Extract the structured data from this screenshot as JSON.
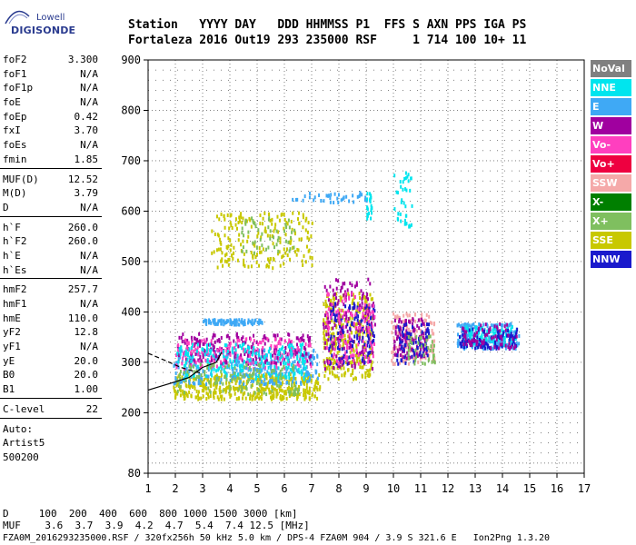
{
  "logo": {
    "line1": "Lowell",
    "line2": "DIGISONDE"
  },
  "header": {
    "line1": "Station   YYYY DAY   DDD HHMMSS P1  FFS S AXN PPS IGA PS",
    "line2": "Fortaleza 2016 Out19 293 235000 RSF     1 714 100 10+ 11"
  },
  "params": {
    "group1": [
      {
        "name": "foF2",
        "value": "3.300"
      },
      {
        "name": "foF1",
        "value": "N/A"
      },
      {
        "name": "foF1p",
        "value": "N/A"
      },
      {
        "name": "foE",
        "value": "N/A"
      },
      {
        "name": "foEp",
        "value": "0.42"
      },
      {
        "name": "fxI",
        "value": "3.70"
      },
      {
        "name": "foEs",
        "value": "N/A"
      },
      {
        "name": "fmin",
        "value": "1.85"
      }
    ],
    "group2": [
      {
        "name": "MUF(D)",
        "value": "12.52"
      },
      {
        "name": "M(D)",
        "value": "3.79"
      },
      {
        "name": "D",
        "value": "N/A"
      }
    ],
    "group3": [
      {
        "name": "h`F",
        "value": "260.0"
      },
      {
        "name": "h`F2",
        "value": "260.0"
      },
      {
        "name": "h`E",
        "value": "N/A"
      },
      {
        "name": "h`Es",
        "value": "N/A"
      }
    ],
    "group4": [
      {
        "name": "hmF2",
        "value": "257.7"
      },
      {
        "name": "hmF1",
        "value": "N/A"
      },
      {
        "name": "hmE",
        "value": "110.0"
      },
      {
        "name": "yF2",
        "value": "12.8"
      },
      {
        "name": "yF1",
        "value": "N/A"
      },
      {
        "name": "yE",
        "value": "20.0"
      },
      {
        "name": "B0",
        "value": "20.0"
      },
      {
        "name": "B1",
        "value": "1.00"
      }
    ],
    "group5": [
      {
        "name": "C-level",
        "value": "22"
      }
    ]
  },
  "auto": [
    "Auto:",
    "Artist5",
    "500200"
  ],
  "legend": [
    {
      "label": "NoVal",
      "color": "#808080"
    },
    {
      "label": "NNE",
      "color": "#00e5ee"
    },
    {
      "label": "E",
      "color": "#3fa9f5"
    },
    {
      "label": "W",
      "color": "#a0009f"
    },
    {
      "label": "Vo-",
      "color": "#ff3fbf"
    },
    {
      "label": "Vo+",
      "color": "#ee0040"
    },
    {
      "label": "SSW",
      "color": "#f5a9a9"
    },
    {
      "label": "X-",
      "color": "#007f00"
    },
    {
      "label": "X+",
      "color": "#7fbf5f"
    },
    {
      "label": "SSE",
      "color": "#c8c800"
    },
    {
      "label": "NNW",
      "color": "#1a1acc"
    }
  ],
  "footer": {
    "line1": "D     100  200  400  600  800 1000 1500 3000 [km]",
    "line2": "MUF    3.6  3.7  3.9  4.2  4.7  5.4  7.4 12.5 [MHz]",
    "line3": "FZA0M_2016293235000.RSF / 320fx256h 50 kHz 5.0 km / DPS-4 FZA0M 904 / 3.9 S 321.6 E   Ion2Png 1.3.20"
  },
  "chart_data": {
    "type": "scatter",
    "xlim": [
      1,
      17
    ],
    "ylim": [
      80,
      900
    ],
    "xticks": [
      1,
      2,
      3,
      4,
      5,
      6,
      7,
      8,
      9,
      10,
      11,
      12,
      13,
      14,
      15,
      16,
      17
    ],
    "yticks": [
      80,
      200,
      300,
      400,
      500,
      600,
      700,
      800,
      900
    ],
    "grid": true,
    "legend_placement": "right",
    "clusters": [
      {
        "series": "SSE",
        "x": [
          1.9,
          7.3
        ],
        "y": [
          230,
          280
        ],
        "count": 420
      },
      {
        "series": "E",
        "x": [
          1.9,
          7.2
        ],
        "y": [
          260,
          330
        ],
        "count": 320
      },
      {
        "series": "W",
        "x": [
          2.0,
          7.0
        ],
        "y": [
          300,
          360
        ],
        "count": 220
      },
      {
        "series": "Vo-",
        "x": [
          2.0,
          7.0
        ],
        "y": [
          290,
          350
        ],
        "count": 160
      },
      {
        "series": "NNE",
        "x": [
          2.0,
          6.8
        ],
        "y": [
          270,
          340
        ],
        "count": 200
      },
      {
        "series": "X+",
        "x": [
          2.0,
          6.5
        ],
        "y": [
          240,
          300
        ],
        "count": 120
      },
      {
        "series": "E",
        "x": [
          3.0,
          5.2
        ],
        "y": [
          378,
          388
        ],
        "count": 90
      },
      {
        "series": "SSE",
        "x": [
          3.3,
          7.0
        ],
        "y": [
          490,
          600
        ],
        "count": 200
      },
      {
        "series": "X+",
        "x": [
          4.3,
          6.4
        ],
        "y": [
          520,
          590
        ],
        "count": 50
      },
      {
        "series": "E",
        "x": [
          6.2,
          9.0
        ],
        "y": [
          620,
          640
        ],
        "count": 40
      },
      {
        "series": "SSE",
        "x": [
          7.4,
          9.2
        ],
        "y": [
          270,
          440
        ],
        "count": 320
      },
      {
        "series": "W",
        "x": [
          7.4,
          9.3
        ],
        "y": [
          290,
          470
        ],
        "count": 180
      },
      {
        "series": "NNW",
        "x": [
          7.6,
          9.3
        ],
        "y": [
          300,
          420
        ],
        "count": 120
      },
      {
        "series": "Vo-",
        "x": [
          7.5,
          9.3
        ],
        "y": [
          300,
          440
        ],
        "count": 110
      },
      {
        "series": "NNE",
        "x": [
          9.0,
          9.2
        ],
        "y": [
          580,
          640
        ],
        "count": 20
      },
      {
        "series": "NNE",
        "x": [
          10.0,
          10.7
        ],
        "y": [
          570,
          680
        ],
        "count": 40
      },
      {
        "series": "SSW",
        "x": [
          9.9,
          11.5
        ],
        "y": [
          300,
          400
        ],
        "count": 150
      },
      {
        "series": "W",
        "x": [
          10.0,
          11.2
        ],
        "y": [
          310,
          390
        ],
        "count": 110
      },
      {
        "series": "NNW",
        "x": [
          10.0,
          11.3
        ],
        "y": [
          300,
          380
        ],
        "count": 70
      },
      {
        "series": "X+",
        "x": [
          10.5,
          11.5
        ],
        "y": [
          300,
          360
        ],
        "count": 40
      },
      {
        "series": "E",
        "x": [
          12.3,
          14.6
        ],
        "y": [
          330,
          380
        ],
        "count": 180
      },
      {
        "series": "NNE",
        "x": [
          12.5,
          14.5
        ],
        "y": [
          335,
          375
        ],
        "count": 110
      },
      {
        "series": "NNW",
        "x": [
          12.4,
          14.6
        ],
        "y": [
          330,
          370
        ],
        "count": 90
      },
      {
        "series": "W",
        "x": [
          12.5,
          14.5
        ],
        "y": [
          330,
          380
        ],
        "count": 70
      }
    ],
    "trace_curves": [
      {
        "name": "profile-solid",
        "points": [
          [
            1.0,
            245
          ],
          [
            1.8,
            258
          ],
          [
            2.5,
            270
          ],
          [
            3.0,
            290
          ],
          [
            3.5,
            300
          ],
          [
            3.7,
            320
          ]
        ]
      },
      {
        "name": "profile-dashed",
        "points": [
          [
            1.0,
            318
          ],
          [
            1.7,
            302
          ],
          [
            2.2,
            290
          ],
          [
            2.7,
            282
          ],
          [
            3.0,
            278
          ]
        ]
      }
    ]
  }
}
